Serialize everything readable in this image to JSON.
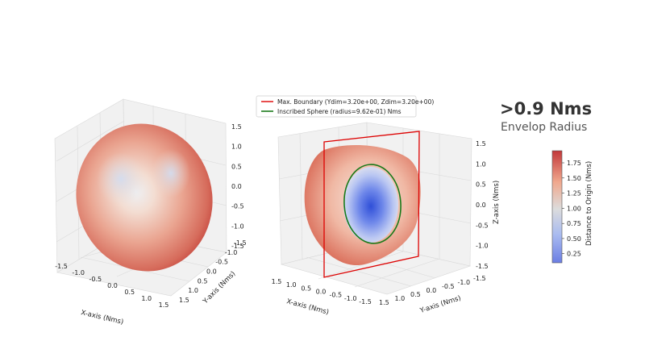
{
  "headline": {
    "value": ">0.9 Nms",
    "caption": "Envelop Radius"
  },
  "colors": {
    "boundary": "#dd0000",
    "inscribed": "#1a7a1a",
    "cmap_low": "#6f7fe6",
    "cmap_mid": "#dcdcdc",
    "cmap_high": "#c43b3b"
  },
  "chart_data": [
    {
      "type": "scatter3d",
      "title": "",
      "xlabel": "X-axis (Nms)",
      "ylabel": "Y-axis (Nms)",
      "zlabel": "",
      "xlim": [
        -1.5,
        1.5
      ],
      "ylim": [
        -1.5,
        1.5
      ],
      "zlim": [
        -1.5,
        1.5
      ],
      "xticks": [
        "-1.5",
        "-1.0",
        "-0.5",
        "0.0",
        "0.5",
        "1.0",
        "1.5"
      ],
      "yticks": [
        "-1.5",
        "-1.0",
        "-0.5",
        "0.0",
        "0.5",
        "1.0",
        "1.5"
      ],
      "zticks": [
        "-1.5",
        "-1.0",
        "-0.5",
        "0.0",
        "0.5",
        "1.0",
        "1.5"
      ],
      "surface": {
        "shape": "momentum envelope",
        "color_by": "distance to origin",
        "min_distance": 0.9,
        "max_distance": 1.9
      }
    },
    {
      "type": "scatter3d",
      "title": "",
      "xlabel": "X-axis (Nms)",
      "ylabel": "Y-axis (Nms)",
      "zlabel": "Z-axis (Nms)",
      "xlim": [
        -1.5,
        1.5
      ],
      "ylim": [
        -1.5,
        1.5
      ],
      "zlim": [
        -1.5,
        1.5
      ],
      "xticks": [
        "1.5",
        "1.0",
        "0.5",
        "0.0",
        "-0.5",
        "-1.0",
        "-1.5"
      ],
      "yticks": [
        "1.5",
        "1.0",
        "0.5",
        "0.0",
        "-0.5",
        "-1.0",
        "-1.5"
      ],
      "zticks": [
        "-1.5",
        "-1.0",
        "-0.5",
        "0.0",
        "0.5",
        "1.0",
        "1.5"
      ],
      "legend": {
        "position": "top",
        "entries": [
          {
            "label": "Max. Boundary (Ydim=3.20e+00, Zdim=3.20e+00)",
            "color": "#dd0000",
            "ydim": 3.2,
            "zdim": 3.2
          },
          {
            "label": "Inscribed Sphere (radius=9.62e-01) Nms",
            "color": "#1a7a1a",
            "radius": 0.962
          }
        ]
      }
    },
    {
      "type": "colorbar",
      "label": "Distance to Origin (Nms)",
      "range": [
        0.1,
        1.95
      ],
      "ticks": [
        "0.25",
        "0.50",
        "0.75",
        "1.00",
        "1.25",
        "1.50",
        "1.75"
      ],
      "tick_values": [
        0.25,
        0.5,
        0.75,
        1.0,
        1.25,
        1.5,
        1.75
      ]
    }
  ]
}
